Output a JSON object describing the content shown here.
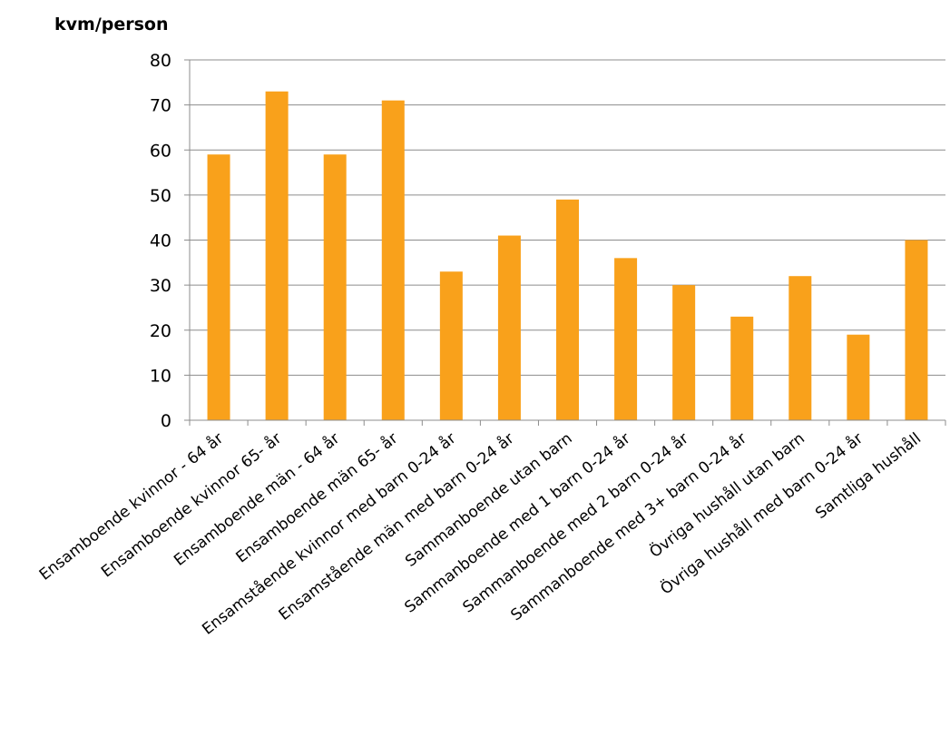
{
  "chart_data": {
    "type": "bar",
    "ylabel": "kvm/person",
    "xlabel": "",
    "ylim": [
      0,
      80
    ],
    "yticks": [
      0,
      10,
      20,
      30,
      40,
      50,
      60,
      70,
      80
    ],
    "grid": true,
    "bar_color": "#F9A11B",
    "categories": [
      "Ensamboende kvinnor - 64 år",
      "Ensamboende kvinnor 65- år",
      "Ensamboende män - 64 år",
      "Ensamboende män 65- år",
      "Ensamstående kvinnor med barn 0-24 år",
      "Ensamstående män med barn 0-24 år",
      "Sammanboende utan barn",
      "Sammanboende med 1 barn 0-24 år",
      "Sammanboende med 2 barn 0-24 år",
      "Sammanboende med 3+ barn 0-24 år",
      "Övriga hushåll utan barn",
      "Övriga hushåll med barn 0-24 år",
      "Samtliga hushåll"
    ],
    "values": [
      59,
      73,
      59,
      71,
      33,
      41,
      49,
      36,
      30,
      23,
      32,
      19,
      40
    ]
  }
}
